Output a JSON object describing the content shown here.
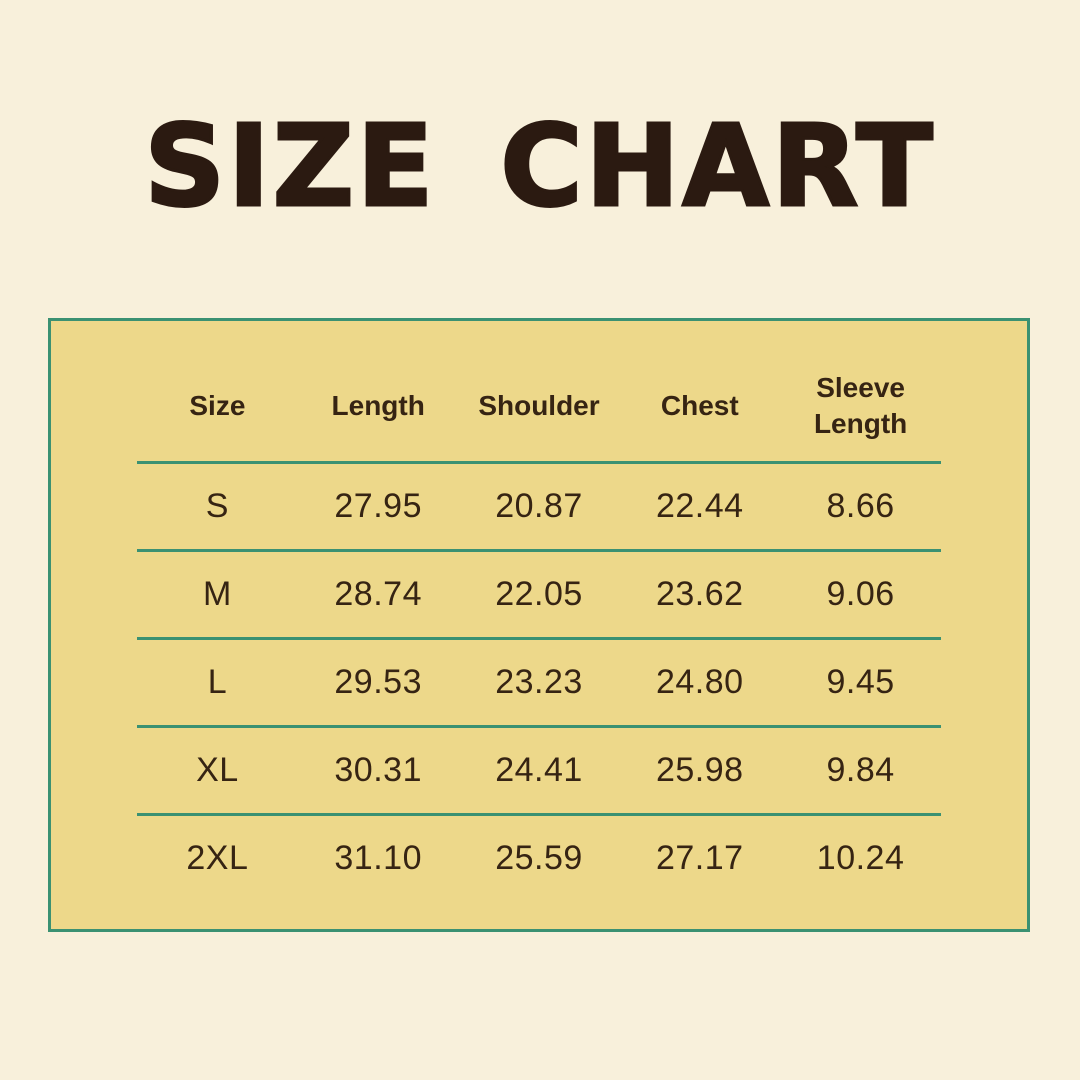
{
  "page": {
    "title": "SIZE CHART"
  },
  "chart_data": {
    "type": "table",
    "title": "SIZE CHART",
    "columns": [
      "Size",
      "Length",
      "Shoulder",
      "Chest",
      "Sleeve Length"
    ],
    "rows": [
      [
        "S",
        "27.95",
        "20.87",
        "22.44",
        "8.66"
      ],
      [
        "M",
        "28.74",
        "22.05",
        "23.62",
        "9.06"
      ],
      [
        "L",
        "29.53",
        "23.23",
        "24.80",
        "9.45"
      ],
      [
        "XL",
        "30.31",
        "24.41",
        "25.98",
        "9.84"
      ],
      [
        "2XL",
        "31.10",
        "25.59",
        "27.17",
        "10.24"
      ]
    ],
    "layout_hints": {
      "header_divider": true,
      "row_dividers": true,
      "last_row_divider": false,
      "cell_alignment": "center"
    }
  },
  "colors": {
    "background": "#f8f0db",
    "panel": "#edd88a",
    "accent": "#3b9172",
    "title": "#2b1a11",
    "text": "#362413"
  }
}
